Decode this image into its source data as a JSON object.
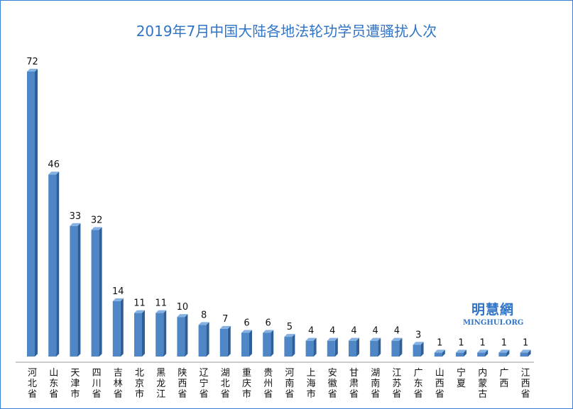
{
  "chart_data": {
    "type": "bar",
    "title": "2019年7月中国大陆各地法轮功学员遭骚扰人次",
    "categories": [
      "河北省",
      "山东省",
      "天津市",
      "四川省",
      "吉林省",
      "北京市",
      "黑龙江",
      "陕西省",
      "辽宁省",
      "湖北省",
      "重庆市",
      "贵州省",
      "河南省",
      "上海市",
      "安徽省",
      "甘肃省",
      "湖南省",
      "江苏省",
      "广东省",
      "山西省",
      "宁夏",
      "内蒙古",
      "广西",
      "江西省"
    ],
    "values": [
      72,
      46,
      33,
      32,
      14,
      11,
      11,
      10,
      8,
      7,
      6,
      6,
      5,
      4,
      4,
      4,
      4,
      4,
      3,
      1,
      1,
      1,
      1,
      1
    ],
    "ylim": [
      0,
      72
    ],
    "grid": false,
    "colors": {
      "bar": "#4f86c6",
      "bar_dark": "#2e5f98",
      "bar_light": "#86b2e3",
      "title": "#2f74c6"
    }
  },
  "watermark": {
    "cn": "明慧網",
    "en": "MINGHUI.ORG"
  }
}
